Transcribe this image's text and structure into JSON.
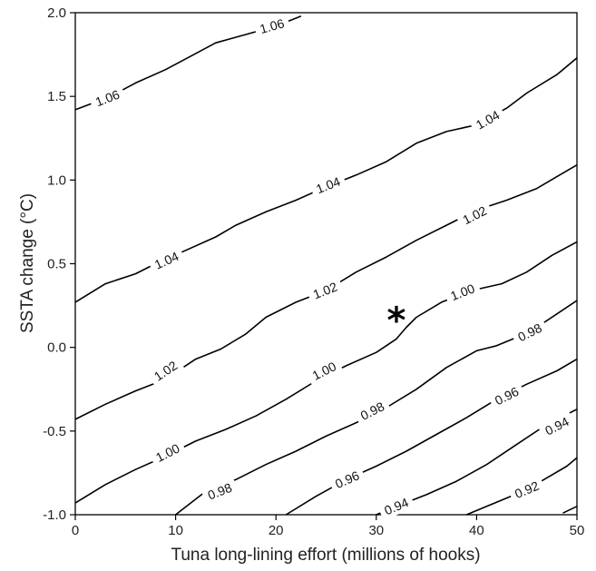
{
  "chart_data": {
    "type": "contour",
    "title": "",
    "xlabel": "Tuna long-lining effort (millions of hooks)",
    "ylabel": "SSTA change (°C)",
    "xlim": [
      0,
      50
    ],
    "ylim": [
      -1.0,
      2.0
    ],
    "xticks": [
      0,
      10,
      20,
      30,
      40,
      50
    ],
    "xtick_labels": [
      "0",
      "10",
      "20",
      "30",
      "40",
      "50"
    ],
    "yticks": [
      -1.0,
      -0.5,
      0.0,
      0.5,
      1.0,
      1.5,
      2.0
    ],
    "ytick_labels": [
      "-1.0",
      "-0.5",
      "0.0",
      "0.5",
      "1.0",
      "1.5",
      "2.0"
    ],
    "grid": false,
    "contours": [
      {
        "level": "1.06",
        "points": [
          [
            0,
            1.42
          ],
          [
            3.5,
            1.5
          ],
          [
            6,
            1.58
          ],
          [
            9,
            1.66
          ],
          [
            11.5,
            1.74
          ],
          [
            14,
            1.82
          ],
          [
            17,
            1.87
          ],
          [
            20,
            1.92
          ],
          [
            22.5,
            1.98
          ]
        ],
        "labels": [
          [
            3.2,
            1.49
          ],
          [
            19.6,
            1.92
          ]
        ]
      },
      {
        "level": "1.04",
        "points": [
          [
            0,
            0.27
          ],
          [
            3,
            0.38
          ],
          [
            6,
            0.44
          ],
          [
            8,
            0.5
          ],
          [
            11,
            0.58
          ],
          [
            14,
            0.66
          ],
          [
            16,
            0.73
          ],
          [
            19,
            0.81
          ],
          [
            22,
            0.88
          ],
          [
            25,
            0.96
          ],
          [
            28,
            1.03
          ],
          [
            31,
            1.11
          ],
          [
            34,
            1.22
          ],
          [
            37,
            1.29
          ],
          [
            40,
            1.33
          ],
          [
            43,
            1.43
          ],
          [
            45,
            1.52
          ],
          [
            48,
            1.63
          ],
          [
            50,
            1.73
          ]
        ],
        "labels": [
          [
            9.1,
            0.52
          ],
          [
            25.2,
            0.97
          ],
          [
            41.1,
            1.36
          ]
        ]
      },
      {
        "level": "1.02",
        "points": [
          [
            0,
            -0.43
          ],
          [
            3,
            -0.34
          ],
          [
            6,
            -0.26
          ],
          [
            9,
            -0.19
          ],
          [
            12,
            -0.07
          ],
          [
            14.5,
            -0.01
          ],
          [
            17,
            0.08
          ],
          [
            19,
            0.18
          ],
          [
            22,
            0.27
          ],
          [
            25,
            0.34
          ],
          [
            28,
            0.45
          ],
          [
            31,
            0.54
          ],
          [
            34,
            0.64
          ],
          [
            37,
            0.73
          ],
          [
            40,
            0.82
          ],
          [
            43,
            0.88
          ],
          [
            46,
            0.95
          ],
          [
            48,
            1.02
          ],
          [
            50,
            1.09
          ]
        ],
        "labels": [
          [
            9.0,
            -0.14
          ],
          [
            24.9,
            0.34
          ],
          [
            39.8,
            0.79
          ]
        ]
      },
      {
        "level": "1.00",
        "points": [
          [
            0,
            -0.93
          ],
          [
            3,
            -0.82
          ],
          [
            6,
            -0.73
          ],
          [
            9,
            -0.65
          ],
          [
            12,
            -0.56
          ],
          [
            15,
            -0.49
          ],
          [
            18,
            -0.41
          ],
          [
            21,
            -0.31
          ],
          [
            24,
            -0.2
          ],
          [
            27,
            -0.11
          ],
          [
            30,
            -0.03
          ],
          [
            31,
            0.01
          ],
          [
            32,
            0.05
          ],
          [
            33,
            0.12
          ],
          [
            34,
            0.18
          ],
          [
            36.5,
            0.27
          ],
          [
            39.5,
            0.34
          ],
          [
            42.5,
            0.38
          ],
          [
            45,
            0.45
          ],
          [
            47.5,
            0.55
          ],
          [
            50,
            0.63
          ]
        ],
        "labels": [
          [
            9.2,
            -0.63
          ],
          [
            24.8,
            -0.14
          ],
          [
            38.6,
            0.33
          ]
        ]
      },
      {
        "level": "0.98",
        "points": [
          [
            10,
            -1.0
          ],
          [
            13,
            -0.86
          ],
          [
            16,
            -0.79
          ],
          [
            19,
            -0.7
          ],
          [
            22,
            -0.62
          ],
          [
            25,
            -0.53
          ],
          [
            28,
            -0.45
          ],
          [
            31,
            -0.36
          ],
          [
            34,
            -0.25
          ],
          [
            37,
            -0.12
          ],
          [
            40,
            -0.02
          ],
          [
            42,
            0.01
          ],
          [
            44,
            0.06
          ],
          [
            46,
            0.12
          ],
          [
            48,
            0.2
          ],
          [
            50,
            0.28
          ]
        ],
        "labels": [
          [
            14.4,
            -0.86
          ],
          [
            29.6,
            -0.38
          ],
          [
            45.3,
            0.09
          ]
        ]
      },
      {
        "level": "0.96",
        "points": [
          [
            21,
            -1.0
          ],
          [
            24,
            -0.89
          ],
          [
            27,
            -0.79
          ],
          [
            30,
            -0.71
          ],
          [
            33,
            -0.62
          ],
          [
            36,
            -0.52
          ],
          [
            39,
            -0.42
          ],
          [
            42,
            -0.31
          ],
          [
            45,
            -0.22
          ],
          [
            48,
            -0.14
          ],
          [
            50,
            -0.07
          ]
        ],
        "labels": [
          [
            27.1,
            -0.79
          ],
          [
            43.0,
            -0.29
          ]
        ]
      },
      {
        "level": "0.94",
        "points": [
          [
            30,
            -1.0
          ],
          [
            32,
            -0.95
          ],
          [
            35,
            -0.88
          ],
          [
            38,
            -0.8
          ],
          [
            41,
            -0.7
          ],
          [
            44,
            -0.58
          ],
          [
            47,
            -0.46
          ],
          [
            50,
            -0.37
          ]
        ],
        "labels": [
          [
            32.0,
            -0.95
          ],
          [
            48.0,
            -0.47
          ]
        ]
      },
      {
        "level": "0.92",
        "points": [
          [
            39,
            -1.0
          ],
          [
            41,
            -0.95
          ],
          [
            43,
            -0.9
          ],
          [
            45,
            -0.85
          ],
          [
            47,
            -0.78
          ],
          [
            49,
            -0.71
          ],
          [
            50,
            -0.66
          ]
        ],
        "labels": [
          [
            45.0,
            -0.85
          ]
        ]
      },
      {
        "level": "",
        "points": [
          [
            48.6,
            -0.99
          ],
          [
            50,
            -0.95
          ]
        ],
        "labels": []
      }
    ],
    "annotations": [
      {
        "text": "*",
        "x": 32,
        "y": 0.18
      }
    ]
  }
}
